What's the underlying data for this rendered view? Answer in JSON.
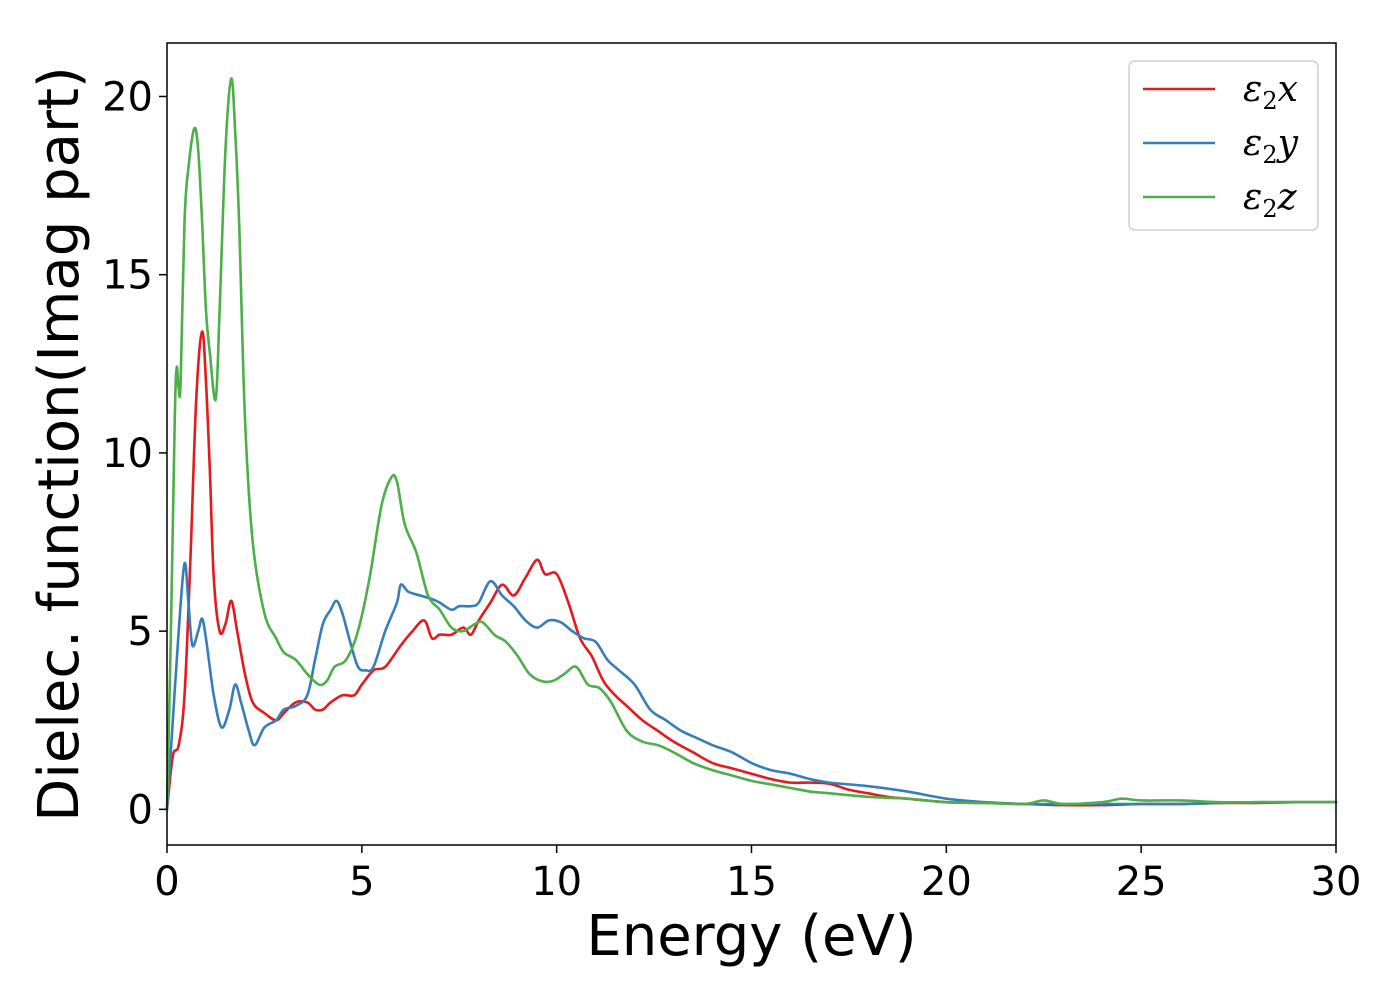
{
  "chart_data": {
    "type": "line",
    "xlabel": "Energy (eV)",
    "ylabel": "Dielec. function(Imag part)",
    "xlim": [
      0,
      30
    ],
    "ylim": [
      -1,
      21.5
    ],
    "xticks": [
      0,
      5,
      10,
      15,
      20,
      25,
      30
    ],
    "xtick_labels": [
      "0",
      "5",
      "10",
      "15",
      "20",
      "25",
      "30"
    ],
    "yticks": [
      0,
      5,
      10,
      15,
      20
    ],
    "ytick_labels": [
      "0",
      "5",
      "10",
      "15",
      "20"
    ],
    "grid": false,
    "legend_position": "top-right",
    "series": [
      {
        "name": "ε2x",
        "legend_base": "ε",
        "legend_sub": "2",
        "legend_suffix": "x",
        "color": "#e41a1c",
        "x": [
          0,
          0.15,
          0.3,
          0.45,
          0.6,
          0.75,
          0.9,
          1.0,
          1.1,
          1.2,
          1.35,
          1.5,
          1.65,
          1.8,
          2.0,
          2.2,
          2.5,
          2.8,
          3.0,
          3.3,
          3.6,
          3.8,
          4.0,
          4.2,
          4.5,
          4.8,
          5.0,
          5.3,
          5.6,
          6.0,
          6.3,
          6.6,
          6.8,
          7.0,
          7.3,
          7.6,
          7.8,
          8.0,
          8.3,
          8.6,
          8.9,
          9.2,
          9.5,
          9.7,
          10.0,
          10.3,
          10.6,
          10.9,
          11.2,
          11.5,
          11.8,
          12.2,
          12.6,
          13.0,
          13.5,
          14.0,
          14.5,
          15.0,
          15.5,
          16.0,
          16.5,
          17.0,
          17.5,
          18.0,
          18.5,
          19.0,
          20.0,
          21.0,
          22.0,
          23.0,
          24.0,
          25.0,
          26.0,
          27.0,
          28.0,
          29.0,
          30.0
        ],
        "y": [
          0,
          1.5,
          1.8,
          3.2,
          7.0,
          11.5,
          13.4,
          12.0,
          9.5,
          6.5,
          5.0,
          5.2,
          5.85,
          5.0,
          3.8,
          3.0,
          2.7,
          2.5,
          2.7,
          3.0,
          3.0,
          2.8,
          2.8,
          3.0,
          3.2,
          3.2,
          3.5,
          3.9,
          4.0,
          4.6,
          5.0,
          5.3,
          4.8,
          4.9,
          4.9,
          5.1,
          4.9,
          5.3,
          5.8,
          6.3,
          6.0,
          6.5,
          7.0,
          6.6,
          6.6,
          5.8,
          4.8,
          4.3,
          3.6,
          3.2,
          2.9,
          2.5,
          2.2,
          1.9,
          1.6,
          1.3,
          1.15,
          1.0,
          0.85,
          0.75,
          0.75,
          0.72,
          0.55,
          0.45,
          0.35,
          0.3,
          0.2,
          0.18,
          0.15,
          0.12,
          0.12,
          0.15,
          0.15,
          0.18,
          0.18,
          0.2,
          0.2
        ]
      },
      {
        "name": "ε2y",
        "legend_base": "ε",
        "legend_sub": "2",
        "legend_suffix": "y",
        "color": "#377eb8",
        "x": [
          0,
          0.15,
          0.3,
          0.45,
          0.55,
          0.65,
          0.8,
          0.9,
          1.0,
          1.2,
          1.4,
          1.6,
          1.75,
          1.9,
          2.1,
          2.25,
          2.5,
          2.8,
          3.0,
          3.3,
          3.6,
          3.8,
          4.0,
          4.2,
          4.35,
          4.5,
          4.7,
          4.9,
          5.1,
          5.3,
          5.6,
          5.9,
          6.0,
          6.2,
          6.5,
          6.8,
          7.0,
          7.3,
          7.5,
          7.8,
          8.0,
          8.3,
          8.6,
          8.9,
          9.2,
          9.5,
          9.8,
          10.1,
          10.4,
          10.7,
          11.0,
          11.3,
          11.6,
          12.0,
          12.4,
          12.8,
          13.2,
          13.6,
          14.0,
          14.5,
          15.0,
          15.5,
          16.0,
          16.5,
          17.0,
          18.0,
          19.0,
          20.0,
          21.0,
          22.0,
          23.0,
          24.0,
          25.0,
          26.0,
          27.0,
          28.0,
          29.0,
          30.0
        ],
        "y": [
          0,
          2.5,
          5.0,
          6.9,
          5.8,
          4.6,
          5.0,
          5.35,
          4.8,
          3.2,
          2.3,
          2.8,
          3.5,
          3.0,
          2.2,
          1.8,
          2.3,
          2.5,
          2.8,
          2.9,
          3.2,
          4.2,
          5.2,
          5.6,
          5.85,
          5.5,
          4.7,
          4.0,
          3.9,
          4.0,
          5.0,
          5.8,
          6.3,
          6.1,
          6.0,
          5.9,
          5.8,
          5.6,
          5.7,
          5.7,
          5.8,
          6.4,
          6.0,
          5.7,
          5.3,
          5.1,
          5.3,
          5.25,
          5.0,
          4.8,
          4.7,
          4.2,
          3.9,
          3.5,
          2.8,
          2.5,
          2.2,
          2.0,
          1.8,
          1.6,
          1.3,
          1.1,
          1.0,
          0.85,
          0.75,
          0.65,
          0.5,
          0.3,
          0.2,
          0.15,
          0.15,
          0.15,
          0.15,
          0.15,
          0.18,
          0.2,
          0.2,
          0.2
        ]
      },
      {
        "name": "ε2z",
        "legend_base": "ε",
        "legend_sub": "2",
        "legend_suffix": "z",
        "color": "#4daf4a",
        "x": [
          0,
          0.1,
          0.2,
          0.25,
          0.3,
          0.35,
          0.45,
          0.55,
          0.7,
          0.8,
          0.9,
          1.0,
          1.1,
          1.25,
          1.35,
          1.5,
          1.65,
          1.75,
          1.85,
          2.0,
          2.2,
          2.5,
          2.8,
          3.0,
          3.3,
          3.6,
          3.9,
          4.1,
          4.3,
          4.6,
          4.9,
          5.2,
          5.5,
          5.75,
          5.9,
          6.1,
          6.4,
          6.7,
          7.0,
          7.3,
          7.6,
          7.9,
          8.1,
          8.4,
          8.7,
          9.0,
          9.3,
          9.6,
          9.9,
          10.2,
          10.5,
          10.8,
          11.1,
          11.4,
          11.8,
          12.2,
          12.6,
          13.0,
          13.5,
          14.0,
          14.5,
          15.0,
          15.5,
          16.0,
          16.5,
          17.0,
          18.0,
          19.0,
          20.0,
          21.0,
          22.0,
          22.5,
          23.0,
          24.0,
          24.5,
          25.0,
          26.0,
          27.0,
          28.0,
          29.0,
          30.0
        ],
        "y": [
          0,
          5.0,
          11.0,
          12.4,
          11.8,
          12.0,
          16.5,
          18.0,
          19.1,
          18.5,
          16.5,
          14.0,
          12.8,
          11.5,
          14.0,
          18.5,
          20.5,
          19.0,
          16.5,
          11.0,
          7.5,
          5.5,
          4.8,
          4.4,
          4.2,
          3.8,
          3.5,
          3.6,
          4.0,
          4.2,
          5.0,
          6.5,
          8.5,
          9.3,
          9.2,
          8.0,
          7.2,
          6.0,
          5.6,
          5.1,
          5.0,
          5.2,
          5.25,
          4.9,
          4.7,
          4.3,
          3.8,
          3.6,
          3.6,
          3.8,
          4.0,
          3.5,
          3.4,
          3.0,
          2.2,
          1.9,
          1.8,
          1.6,
          1.3,
          1.1,
          0.95,
          0.8,
          0.7,
          0.6,
          0.5,
          0.45,
          0.35,
          0.3,
          0.2,
          0.18,
          0.15,
          0.25,
          0.15,
          0.2,
          0.3,
          0.25,
          0.25,
          0.2,
          0.2,
          0.2,
          0.2
        ]
      }
    ]
  }
}
